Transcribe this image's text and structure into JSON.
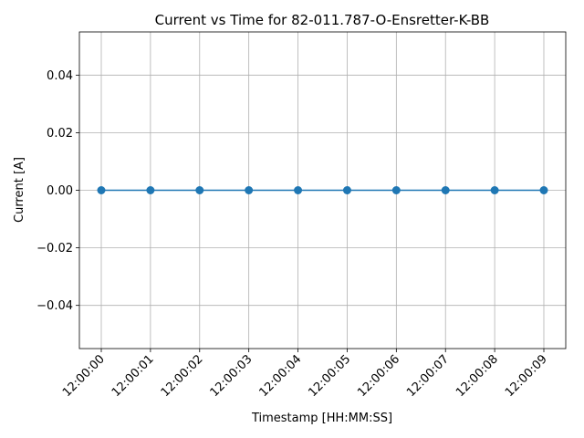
{
  "chart_data": {
    "type": "line",
    "title": "Current vs Time for 82-011.787-O-Ensretter-K-BB",
    "xlabel": "Timestamp [HH:MM:SS]",
    "ylabel": "Current [A]",
    "categories": [
      "12:00:00",
      "12:00:01",
      "12:00:02",
      "12:00:03",
      "12:00:04",
      "12:00:05",
      "12:00:06",
      "12:00:07",
      "12:00:08",
      "12:00:09"
    ],
    "series": [
      {
        "name": "Current",
        "values": [
          0,
          0,
          0,
          0,
          0,
          0,
          0,
          0,
          0,
          0
        ],
        "color": "#1f77b4",
        "marker": "circle"
      }
    ],
    "ylim": [
      -0.055,
      0.055
    ],
    "yticks": [
      -0.04,
      -0.02,
      0.0,
      0.02,
      0.04
    ],
    "ytick_labels": [
      "−0.04",
      "−0.02",
      "0.00",
      "0.02",
      "0.04"
    ],
    "grid": true,
    "colors": {
      "grid": "#b0b0b0",
      "axis": "#000000"
    }
  }
}
